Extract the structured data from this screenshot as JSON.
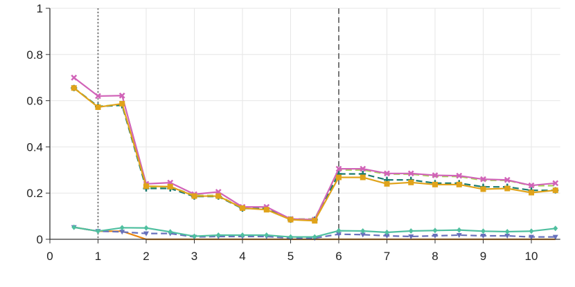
{
  "chart_data": {
    "type": "line",
    "title": "",
    "xlabel": "",
    "ylabel": "",
    "xlim": [
      0,
      10.6
    ],
    "ylim": [
      0,
      1
    ],
    "xticks": [
      0,
      1,
      2,
      3,
      4,
      5,
      6,
      7,
      8,
      9,
      10
    ],
    "yticks": [
      0,
      0.2,
      0.4,
      0.6,
      0.8,
      1
    ],
    "ytick_labels": [
      "0",
      "0.2",
      "0.4",
      "0.6",
      "0.8",
      "1"
    ],
    "grid": true,
    "vlines": [
      {
        "x": 1,
        "style": "dotted"
      },
      {
        "x": 6,
        "style": "dashed"
      }
    ],
    "x": [
      0.5,
      1,
      1.5,
      2,
      2.5,
      3,
      3.5,
      4,
      4.5,
      5,
      5.5,
      6,
      6.5,
      7,
      7.5,
      8,
      8.5,
      9,
      9.5,
      10,
      10.5
    ],
    "series": [
      {
        "name": "series-light-green",
        "color": "#a6d854",
        "dash": true,
        "marker": "none",
        "values": [
          0.655,
          0.575,
          0.585,
          0.225,
          0.228,
          0.19,
          0.19,
          0.135,
          0.135,
          0.088,
          0.088,
          0.3,
          0.3,
          0.282,
          0.282,
          0.272,
          0.272,
          0.255,
          0.255,
          0.232,
          0.232
        ]
      },
      {
        "name": "series-dark-green",
        "color": "#1b7a6e",
        "dash": true,
        "marker": "plus",
        "values": [
          0.655,
          0.575,
          0.58,
          0.22,
          0.22,
          0.185,
          0.185,
          0.133,
          0.133,
          0.085,
          0.085,
          0.283,
          0.283,
          0.257,
          0.257,
          0.243,
          0.243,
          0.227,
          0.227,
          0.212,
          0.212
        ]
      },
      {
        "name": "series-pink",
        "color": "#d163b8",
        "dash": false,
        "marker": "x",
        "values": [
          0.7,
          0.62,
          0.622,
          0.24,
          0.245,
          0.195,
          0.205,
          0.14,
          0.14,
          0.088,
          0.085,
          0.305,
          0.305,
          0.285,
          0.285,
          0.277,
          0.275,
          0.26,
          0.257,
          0.233,
          0.243
        ]
      },
      {
        "name": "series-yellow",
        "color": "#e0a31a",
        "dash": false,
        "marker": "square",
        "values": [
          0.655,
          0.572,
          0.587,
          0.23,
          0.228,
          0.187,
          0.187,
          0.135,
          0.128,
          0.085,
          0.08,
          0.268,
          0.268,
          0.24,
          0.246,
          0.237,
          0.237,
          0.217,
          0.22,
          0.202,
          0.212
        ]
      },
      {
        "name": "series-orange",
        "color": "#e8820c",
        "dash": false,
        "marker": "none",
        "values": [
          0.052,
          0.035,
          0.035,
          0,
          0,
          0,
          0,
          0,
          0,
          0,
          0,
          0,
          0,
          0,
          0,
          0,
          0,
          0,
          0,
          0,
          0
        ]
      },
      {
        "name": "series-blue",
        "color": "#6670bb",
        "dash": true,
        "marker": "triangle",
        "values": [
          0.052,
          0.035,
          0.032,
          0.025,
          0.025,
          0.01,
          0.012,
          0.012,
          0.012,
          0.005,
          0.005,
          0.022,
          0.02,
          0.015,
          0.012,
          0.015,
          0.018,
          0.015,
          0.015,
          0.01,
          0.01
        ]
      },
      {
        "name": "series-teal",
        "color": "#4fbf9f",
        "dash": false,
        "marker": "diamond",
        "values": [
          0.052,
          0.035,
          0.05,
          0.049,
          0.032,
          0.013,
          0.018,
          0.018,
          0.018,
          0.01,
          0.01,
          0.037,
          0.036,
          0.03,
          0.036,
          0.038,
          0.04,
          0.035,
          0.033,
          0.035,
          0.047
        ]
      }
    ]
  }
}
